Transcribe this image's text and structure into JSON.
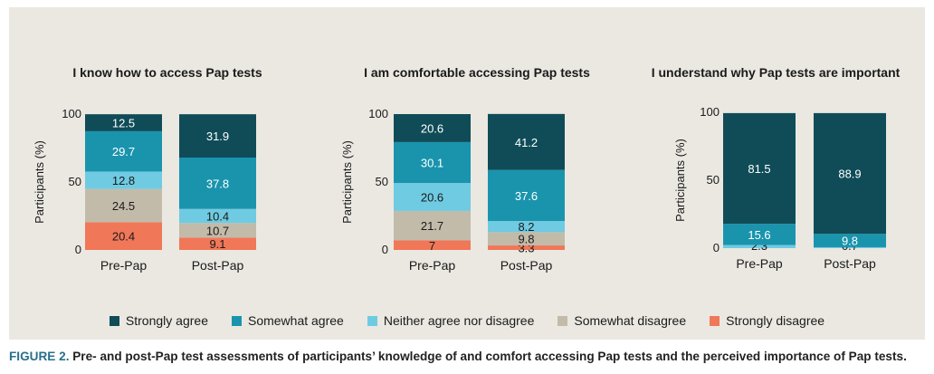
{
  "colors": {
    "strongly_agree": "#0f4c58",
    "somewhat_agree": "#1a94ad",
    "neither": "#6fcbe2",
    "somewhat_disagree": "#c3bbaa",
    "strongly_disagree": "#f07758"
  },
  "legend": [
    {
      "label": "Strongly agree",
      "color": "#0f4c58"
    },
    {
      "label": "Somewhat agree",
      "color": "#1a94ad"
    },
    {
      "label": "Neither agree nor disagree",
      "color": "#6fcbe2"
    },
    {
      "label": "Somewhat disagree",
      "color": "#c3bbaa"
    },
    {
      "label": "Strongly disagree",
      "color": "#f07758"
    }
  ],
  "caption": {
    "label": "FIGURE 2.",
    "text": " Pre- and post-Pap test assessments of participants’ knowledge of and comfort accessing Pap tests and the perceived importance of Pap tests."
  },
  "chart_data": [
    {
      "type": "bar",
      "stacked": true,
      "title": "I know how to access Pap tests",
      "ylabel": "Participants (%)",
      "ylim": [
        0,
        100
      ],
      "yticks": [
        0,
        50,
        100
      ],
      "categories": [
        "Pre-Pap",
        "Post-Pap"
      ],
      "series": [
        {
          "name": "Strongly disagree",
          "values": [
            20.4,
            9.1
          ]
        },
        {
          "name": "Somewhat disagree",
          "values": [
            24.5,
            10.7
          ]
        },
        {
          "name": "Neither agree nor disagree",
          "values": [
            12.8,
            10.4
          ]
        },
        {
          "name": "Somewhat agree",
          "values": [
            29.7,
            37.8
          ]
        },
        {
          "name": "Strongly agree",
          "values": [
            12.5,
            31.9
          ]
        }
      ],
      "labels": [
        [
          "20.4",
          "24.5",
          "12.8",
          "29.7",
          "12.5"
        ],
        [
          "9.1",
          "10.7",
          "10.4",
          "37.8",
          "31.9"
        ]
      ]
    },
    {
      "type": "bar",
      "stacked": true,
      "title": "I am comfortable accessing Pap tests",
      "ylabel": "Participants (%)",
      "ylim": [
        0,
        100
      ],
      "yticks": [
        0,
        50,
        100
      ],
      "categories": [
        "Pre-Pap",
        "Post-Pap"
      ],
      "series": [
        {
          "name": "Strongly disagree",
          "values": [
            7,
            3.3
          ]
        },
        {
          "name": "Somewhat disagree",
          "values": [
            21.7,
            9.8
          ]
        },
        {
          "name": "Neither agree nor disagree",
          "values": [
            20.6,
            8.2
          ]
        },
        {
          "name": "Somewhat agree",
          "values": [
            30.1,
            37.6
          ]
        },
        {
          "name": "Strongly agree",
          "values": [
            20.6,
            41.2
          ]
        }
      ],
      "labels": [
        [
          "7",
          "21.7",
          "20.6",
          "30.1",
          "20.6"
        ],
        [
          "3.3",
          "9.8",
          "8.2",
          "37.6",
          "41.2"
        ]
      ]
    },
    {
      "type": "bar",
      "stacked": true,
      "title": "I understand why Pap tests are important",
      "ylabel": "Participants (%)",
      "ylim": [
        0,
        100
      ],
      "yticks": [
        0,
        50,
        100
      ],
      "categories": [
        "Pre-Pap",
        "Post-Pap"
      ],
      "series": [
        {
          "name": "Strongly disagree",
          "values": [
            0,
            0
          ]
        },
        {
          "name": "Somewhat disagree",
          "values": [
            0,
            0
          ]
        },
        {
          "name": "Neither agree nor disagree",
          "values": [
            2.3,
            0.7
          ]
        },
        {
          "name": "Somewhat agree",
          "values": [
            15.6,
            9.8
          ]
        },
        {
          "name": "Strongly agree",
          "values": [
            81.5,
            88.9
          ]
        }
      ],
      "labels": [
        [
          "",
          "",
          "2.3",
          "15.6",
          "81.5"
        ],
        [
          "",
          "",
          "0.7",
          "9.8",
          "88.9"
        ]
      ]
    }
  ]
}
